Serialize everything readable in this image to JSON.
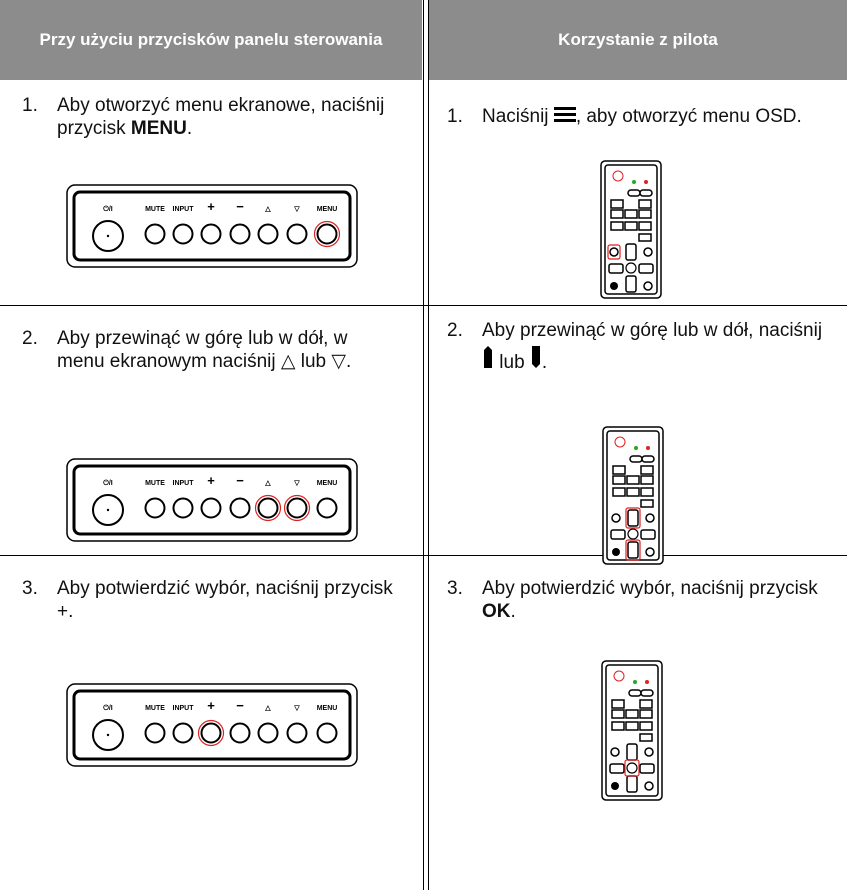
{
  "header": {
    "left": "Przy użyciu przycisków panelu sterowania",
    "right": "Korzystanie z pilota"
  },
  "panel_labels": [
    "⏻/I",
    "MUTE",
    "INPUT",
    "+",
    "−",
    "△",
    "▽",
    "MENU"
  ],
  "rows": [
    {
      "left": {
        "number": "1.",
        "text": "Aby otworzyć menu ekranowe, naciśnij przycisk ",
        "bold": "MENU",
        "end": "."
      },
      "right": {
        "number": "1.",
        "text": "Naciśnij",
        "end": ", aby otworzyć menu OSD."
      }
    },
    {
      "left": {
        "number": "2.",
        "text": "Aby przewinąć w górę lub w dół, w menu ekranowym naciśnij △ lub ▽."
      },
      "right": {
        "number": "2.",
        "text": "Aby przewinąć w górę lub w dół, naciśnij",
        "mid": "lub",
        "end": "."
      }
    },
    {
      "left": {
        "number": "3.",
        "text": "Aby potwierdzić wybór, naciśnij przycisk +."
      },
      "right": {
        "number": "3.",
        "text": "Aby potwierdzić wybór, naciśnij przycisk ",
        "bold": "OK",
        "end": "."
      }
    }
  ]
}
